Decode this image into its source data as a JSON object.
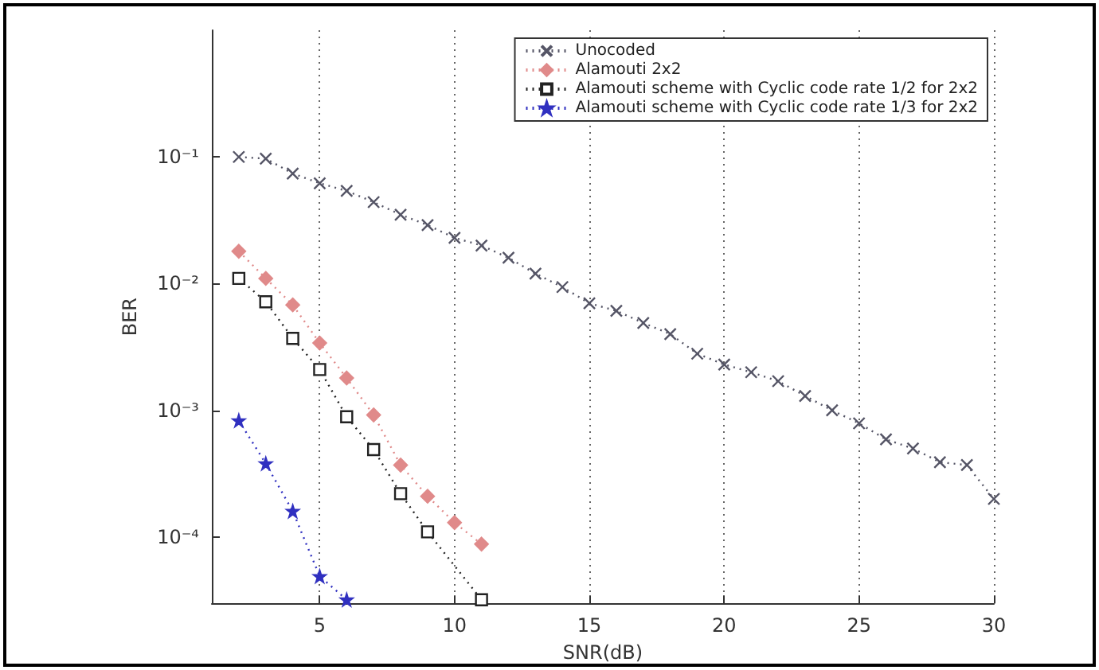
{
  "chart_data": {
    "type": "line",
    "xlabel": "SNR(dB)",
    "ylabel": "BER",
    "log": "y",
    "grid": "x",
    "legend": "top right",
    "line_style": "dotted",
    "xlim": [
      1,
      30
    ],
    "xticks": [
      5,
      10,
      15,
      20,
      25,
      30
    ],
    "ylim": [
      3e-05,
      1
    ],
    "yticks": [
      {
        "value": 0.1,
        "label": "10⁻¹"
      },
      {
        "value": 0.01,
        "label": "10⁻²"
      },
      {
        "value": 0.001,
        "label": "10⁻³"
      },
      {
        "value": 0.0001,
        "label": "10⁻⁴"
      }
    ],
    "series": [
      {
        "name": "Unocoded",
        "color": "#555566",
        "marker": "cross",
        "x": [
          2,
          3,
          4,
          5,
          6,
          7,
          8,
          9,
          10,
          11,
          12,
          13,
          14,
          15,
          16,
          17,
          18,
          19,
          20,
          21,
          22,
          23,
          24,
          25,
          26,
          27,
          28,
          29,
          30
        ],
        "values": [
          0.1,
          0.097,
          0.074,
          0.062,
          0.054,
          0.044,
          0.035,
          0.029,
          0.023,
          0.02,
          0.016,
          0.012,
          0.0094,
          0.007,
          0.0061,
          0.0049,
          0.004,
          0.0028,
          0.0023,
          0.002,
          0.0017,
          0.0013,
          0.001,
          0.00079,
          0.00059,
          0.0005,
          0.00039,
          0.00037,
          0.0002
        ]
      },
      {
        "name": "Alamouti 2x2",
        "color": "#e08a8a",
        "marker": "diamond",
        "x": [
          2,
          3,
          4,
          5,
          6,
          7,
          8,
          9,
          10,
          11
        ],
        "values": [
          0.018,
          0.011,
          0.0068,
          0.0034,
          0.0018,
          0.00092,
          0.00037,
          0.00021,
          0.00013,
          8.8e-05
        ]
      },
      {
        "name": "Alamouti scheme with Cyclic code rate 1/2 for 2x2",
        "color": "#222222",
        "marker": "square",
        "x": [
          2,
          3,
          4,
          5,
          6,
          7,
          8,
          9,
          11
        ],
        "values": [
          0.011,
          0.0072,
          0.0037,
          0.0021,
          0.00089,
          0.00049,
          0.00022,
          0.00011,
          3.2e-05
        ]
      },
      {
        "name": "Alamouti scheme with Cyclic code rate 1/3 for 2x2",
        "color": "#3030c0",
        "marker": "star",
        "x": [
          2,
          3,
          4,
          5,
          6
        ],
        "values": [
          0.00083,
          0.00038,
          0.00016,
          4.9e-05,
          3.2e-05
        ]
      }
    ]
  }
}
